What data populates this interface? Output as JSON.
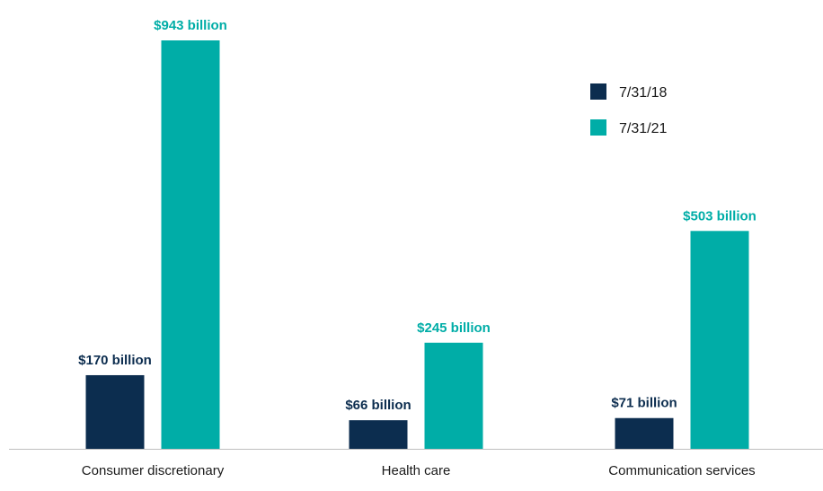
{
  "chart_data": {
    "type": "bar",
    "title": "",
    "xlabel": "",
    "ylabel": "",
    "categories": [
      "Consumer discretionary",
      "Health care",
      "Communication services"
    ],
    "series": [
      {
        "name": "7/31/18",
        "color": "#0c2d4f",
        "values": [
          170,
          66,
          71
        ],
        "labels": [
          "$170 billion",
          "$66 billion",
          "$71 billion"
        ]
      },
      {
        "name": "7/31/21",
        "color": "#00ada7",
        "values": [
          943,
          245,
          503
        ],
        "labels": [
          "$943 billion",
          "$245 billion",
          "$503 billion"
        ]
      }
    ],
    "ylim": [
      0,
      943
    ],
    "grid": false,
    "legend_position": "top-right"
  }
}
